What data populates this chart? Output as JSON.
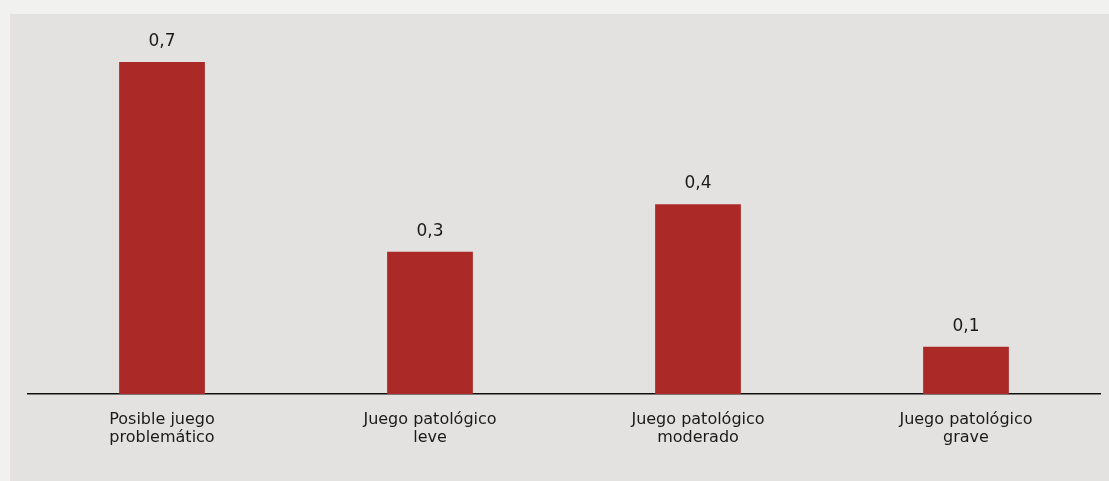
{
  "chart_data": {
    "type": "bar",
    "categories": [
      "Posible juego problemático",
      "Juego patológico leve",
      "Juego patológico moderado",
      "Juego patológico grave"
    ],
    "values": [
      0.7,
      0.3,
      0.4,
      0.1
    ],
    "color": "#ab2a28",
    "value_labels": [
      "0,7",
      "0,3",
      "0,4",
      "0,1"
    ],
    "tick_labels": "x",
    "grid": false,
    "legend": false
  }
}
